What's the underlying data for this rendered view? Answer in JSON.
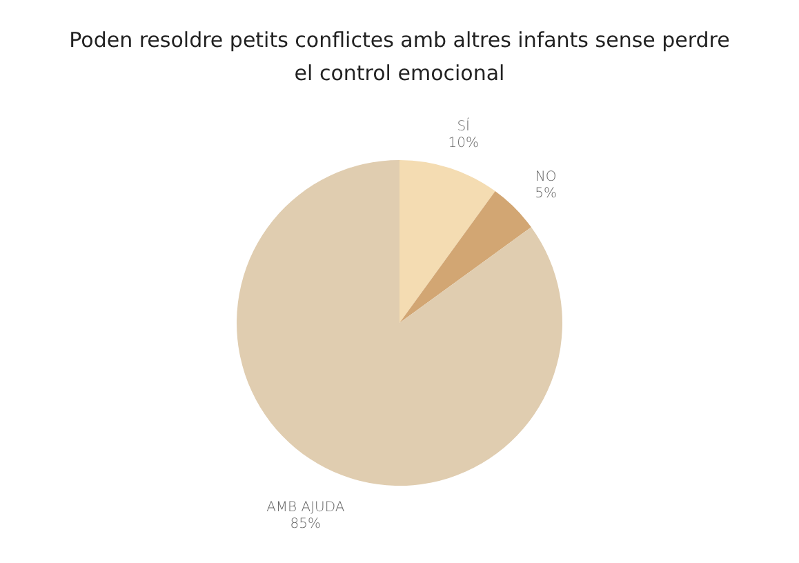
{
  "chart_data": {
    "type": "pie",
    "title": "Poden resoldre petits conflictes amb altres infants sense perdre el control emocional",
    "categories": [
      "SÍ",
      "NO",
      "AMB AJUDA"
    ],
    "values": [
      10,
      5,
      85
    ],
    "value_labels": [
      "10%",
      "5%",
      "85%"
    ],
    "colors": [
      "#f4dcb2",
      "#d2a673",
      "#e0cdb0"
    ]
  }
}
